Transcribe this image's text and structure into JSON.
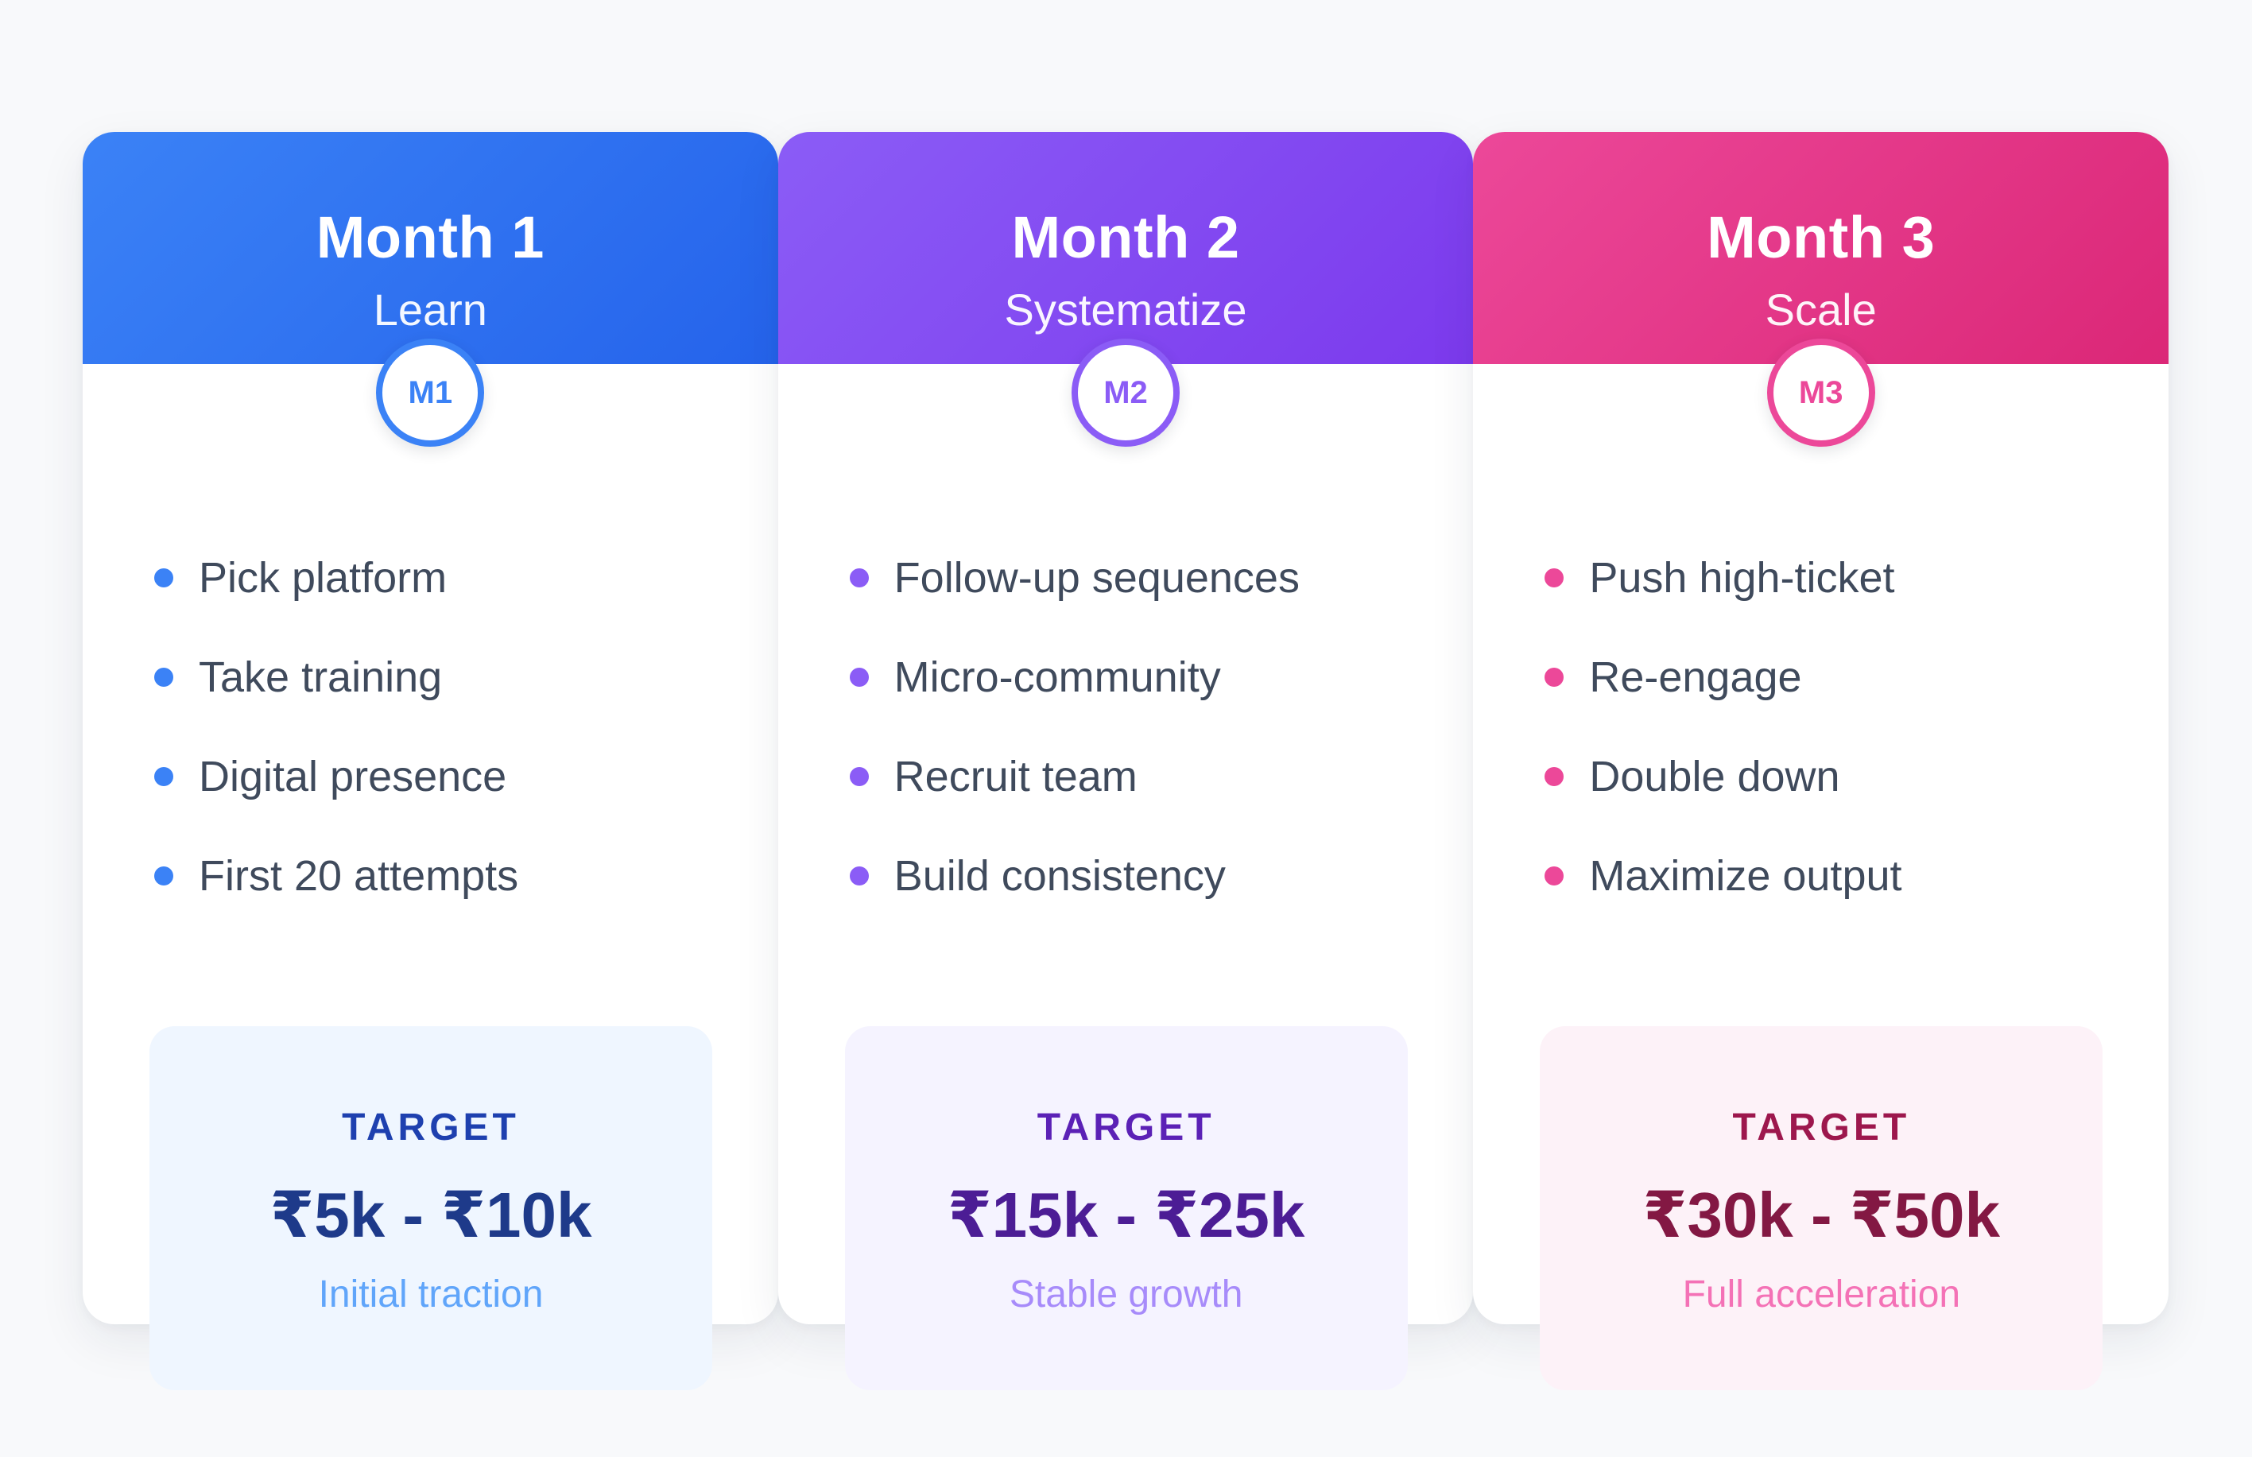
{
  "months": [
    {
      "title": "Month 1",
      "subtitle": "Learn",
      "badge": "M1",
      "tasks": [
        "Pick platform",
        "Take training",
        "Digital presence",
        "First 20 attempts"
      ],
      "target": {
        "label": "TARGET",
        "value": "₹5k - ₹10k",
        "note": "Initial traction"
      },
      "colors": {
        "header_from": "#3b82f6",
        "header_to": "#2563eb",
        "accent": "#3b82f6",
        "box_bg": "#eff6ff",
        "label": "#1e40af",
        "value": "#1e3a8a",
        "note": "#60a5fa"
      }
    },
    {
      "title": "Month 2",
      "subtitle": "Systematize",
      "badge": "M2",
      "tasks": [
        "Follow-up sequences",
        "Micro-community",
        "Recruit team",
        "Build consistency"
      ],
      "target": {
        "label": "TARGET",
        "value": "₹15k - ₹25k",
        "note": "Stable growth"
      },
      "colors": {
        "header_from": "#8b5cf6",
        "header_to": "#7c3aed",
        "accent": "#8b5cf6",
        "box_bg": "#f5f3ff",
        "label": "#5b21b6",
        "value": "#4c1d95",
        "note": "#a78bfa"
      }
    },
    {
      "title": "Month 3",
      "subtitle": "Scale",
      "badge": "M3",
      "tasks": [
        "Push high-ticket",
        "Re-engage",
        "Double down",
        "Maximize output"
      ],
      "target": {
        "label": "TARGET",
        "value": "₹30k - ₹50k",
        "note": "Full acceleration"
      },
      "colors": {
        "header_from": "#ec4899",
        "header_to": "#db2777",
        "accent": "#ec4899",
        "box_bg": "#fdf2f8",
        "label": "#9d174d",
        "value": "#831843",
        "note": "#f472b6"
      }
    }
  ]
}
